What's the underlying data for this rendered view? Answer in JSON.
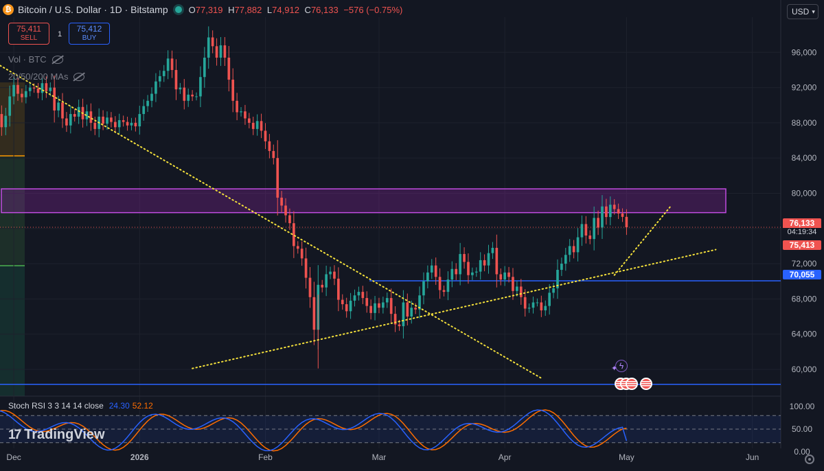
{
  "header": {
    "symbol": "Bitcoin / U.S. Dollar · 1D · Bitstamp",
    "icon": "bitcoin-icon",
    "open_label": "O",
    "open": "77,319",
    "high_label": "H",
    "high": "77,882",
    "low_label": "L",
    "low": "74,912",
    "close_label": "C",
    "close": "76,133",
    "change": "−576 (−0.75%)"
  },
  "trade": {
    "sell_price": "75,411",
    "sell_label": "SELL",
    "spread": "1",
    "buy_price": "75,412",
    "buy_label": "BUY"
  },
  "indicators": {
    "volume_label": "Vol · BTC",
    "ma_label": "20/50/200 MAs"
  },
  "currency": "USD",
  "price_labels": {
    "last": "76,133",
    "countdown": "04:19:34",
    "bid": "75,413",
    "line": "70,055"
  },
  "stoch": {
    "label": "Stoch RSI 3 3 14 14 close",
    "k": "24.30",
    "d": "52.12",
    "ticks": [
      "100.00",
      "50.00",
      "0.00"
    ]
  },
  "branding": "TradingView",
  "colors": {
    "background": "#131722",
    "up": "#26a69a",
    "down": "#ef5350",
    "zone": "#9c27b0",
    "hline": "#2962ff",
    "trend": "#f5e13b",
    "stoch_k": "#2962ff",
    "stoch_d": "#ff6d00"
  },
  "chart_data": {
    "type": "candlestick",
    "interval": "1D",
    "y_ticks": [
      60000,
      64000,
      68000,
      72000,
      76000,
      80000,
      84000,
      88000,
      92000,
      96000
    ],
    "y_tick_labels": [
      "60,000",
      "64,000",
      "68,000",
      "72,000",
      "76,000",
      "80,000",
      "84,000",
      "88,000",
      "92,000",
      "96,000"
    ],
    "ylim": [
      57500,
      100000
    ],
    "x_ticks": [
      "Dec",
      "2026",
      "Feb",
      "Mar",
      "Apr",
      "May",
      "Jun"
    ],
    "x_tick_days": [
      0,
      31,
      62,
      90,
      121,
      151,
      182
    ],
    "xlim": [
      -3.4,
      189
    ],
    "first_day": -10,
    "closes": [
      87000,
      88500,
      90500,
      89800,
      91700,
      90500,
      89000,
      87500,
      88800,
      91000,
      92300,
      91300,
      90900,
      91600,
      92000,
      91900,
      91400,
      92500,
      91600,
      92000,
      89400,
      90300,
      88500,
      87700,
      89000,
      88700,
      89800,
      88400,
      89300,
      88000,
      87300,
      88700,
      87900,
      88600,
      88100,
      87500,
      88300,
      88100,
      87700,
      88000,
      87600,
      89000,
      89900,
      90500,
      91300,
      92700,
      93300,
      93900,
      95300,
      94000,
      91800,
      92000,
      90500,
      91200,
      91000,
      91000,
      93200,
      95400,
      97700,
      96700,
      95400,
      96800,
      95400,
      92900,
      90500,
      89200,
      89300,
      88500,
      88000,
      87300,
      88200,
      87100,
      85900,
      84800,
      84000,
      79500,
      78600,
      77500,
      76600,
      74000,
      73700,
      72600,
      70400,
      68200,
      64500,
      69600,
      69300,
      70800,
      71100,
      70300,
      67900,
      67400,
      66600,
      67800,
      68400,
      68800,
      68100,
      67200,
      66400,
      67500,
      67000,
      67600,
      68100,
      66300,
      65100,
      64900,
      67600,
      66000,
      67000,
      66800,
      68400,
      70000,
      71000,
      71800,
      70500,
      69000,
      68800,
      70200,
      71400,
      70800,
      73100,
      72200,
      70700,
      71000,
      71100,
      72400,
      71800,
      73200,
      73800,
      70800,
      70200,
      71000,
      70500,
      68900,
      69400,
      68200,
      66900,
      67000,
      67600,
      67600,
      66700,
      67200,
      68700,
      69200,
      71300,
      72000,
      73000,
      74000,
      73300,
      75000,
      76500,
      75200,
      74800,
      77200,
      76100,
      78500,
      77300,
      78700,
      78200,
      77700,
      77319,
      76133
    ],
    "resistance_zone": [
      77800,
      80500
    ],
    "horizontal_lines": [
      70055,
      58300
    ],
    "trendlines": [
      {
        "x": [
          -9,
          130
        ],
        "y": [
          96000,
          59000
        ]
      },
      {
        "x": [
          44,
          173
        ],
        "y": [
          60100,
          73600
        ]
      },
      {
        "x": [
          148,
          162
        ],
        "y": [
          70700,
          78600
        ]
      }
    ],
    "current_price": 76133,
    "stoch_rsi": {
      "ylim": [
        0,
        100
      ],
      "ticks": [
        100,
        50,
        0
      ],
      "band": [
        20,
        80
      ],
      "k_last": 24.3,
      "d_last": 52.12
    }
  }
}
